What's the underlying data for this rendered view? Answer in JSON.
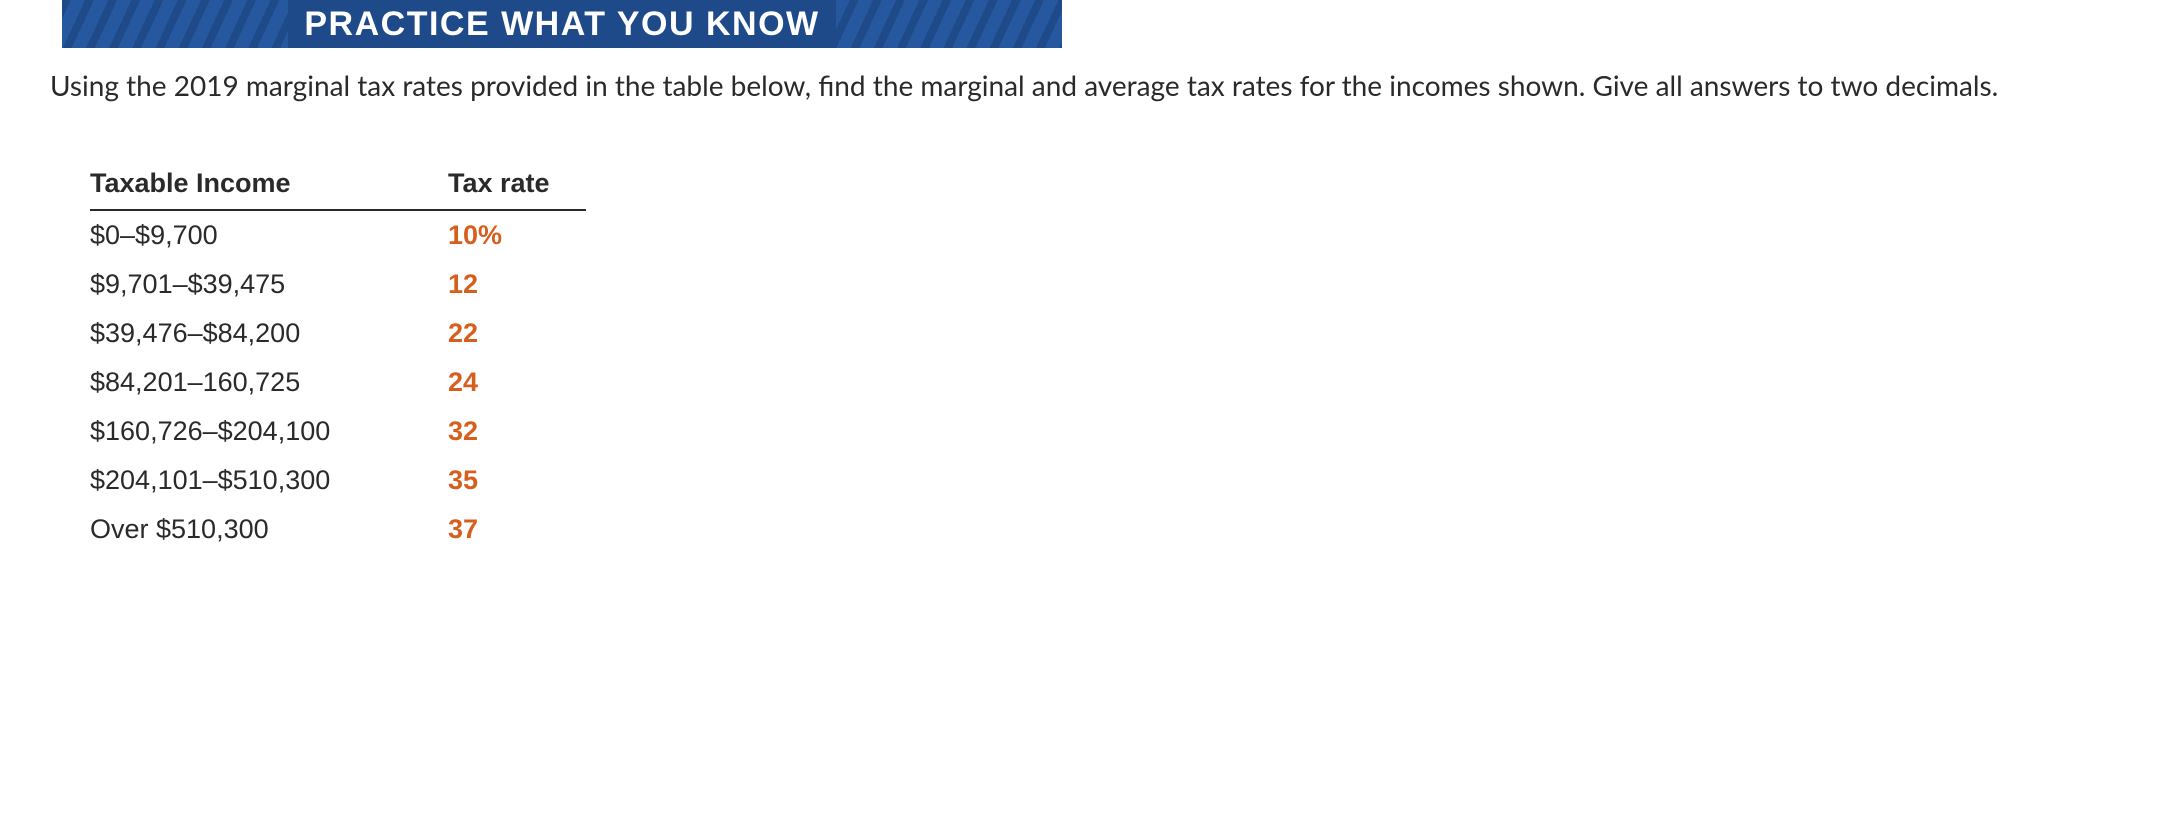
{
  "banner": {
    "title": "PRACTICE WHAT YOU KNOW",
    "bg_color": "#1e4a8a",
    "stripe_color": "#2658a0",
    "text_color": "#ffffff"
  },
  "instructions": "Using the 2019 marginal tax rates provided in the table below, find the marginal and average tax rates for the incomes shown. Give all answers to two decimals.",
  "tax_table": {
    "type": "table",
    "columns": [
      "Taxable Income",
      "Tax rate"
    ],
    "rows": [
      {
        "income": "$0–$9,700",
        "rate": "10%"
      },
      {
        "income": "$9,701–$39,475",
        "rate": "12"
      },
      {
        "income": "$39,476–$84,200",
        "rate": "22"
      },
      {
        "income": "$84,201–160,725",
        "rate": "24"
      },
      {
        "income": "$160,726–$204,100",
        "rate": "32"
      },
      {
        "income": "$204,101–$510,300",
        "rate": "35"
      },
      {
        "income": "Over $510,300",
        "rate": "37"
      }
    ],
    "header_fontsize": 27,
    "cell_fontsize": 27,
    "header_color": "#2a2a2a",
    "income_color": "#2a2a2a",
    "rate_color": "#d75f1e",
    "border_color": "#2a2a2a"
  }
}
